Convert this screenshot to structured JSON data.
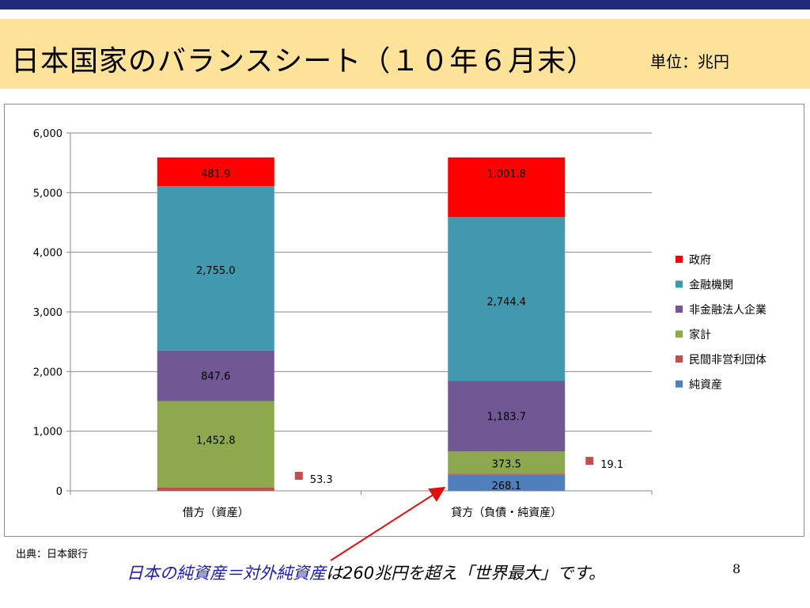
{
  "slide": {
    "title": "日本国家のバランスシート（１０年６月末）",
    "unit": "単位：兆円",
    "source": "出典：日本銀行",
    "caption_highlight": "日本の純資産＝対外純資産",
    "caption_rest": "は260兆円を超え「世界最大」です。",
    "page_number": "8"
  },
  "chart_data": {
    "type": "bar",
    "stacked": true,
    "categories": [
      "借方（資産）",
      "貸方（負債・純資産）"
    ],
    "ylim": [
      0,
      6000
    ],
    "yticks": [
      "0",
      "1,000",
      "2,000",
      "3,000",
      "4,000",
      "5,000",
      "6,000"
    ],
    "grid": true,
    "legend_position": "right",
    "series": [
      {
        "name": "純資産",
        "color": "#4f7fbd",
        "values": [
          0,
          268.1
        ],
        "labels": [
          "",
          "268.1"
        ]
      },
      {
        "name": "民間非営利団体",
        "color": "#c0504d",
        "values": [
          53.3,
          19.1
        ],
        "labels": [
          "53.3",
          "19.1"
        ]
      },
      {
        "name": "家計",
        "color": "#8ea84e",
        "values": [
          1452.8,
          373.5
        ],
        "labels": [
          "1,452.8",
          "373.5"
        ]
      },
      {
        "name": "非金融法人企業",
        "color": "#6f5893",
        "values": [
          847.6,
          1183.7
        ],
        "labels": [
          "847.6",
          "1,183.7"
        ]
      },
      {
        "name": "金融機関",
        "color": "#4298ae",
        "values": [
          2755.0,
          2744.4
        ],
        "labels": [
          "2,755.0",
          "2,744.4"
        ]
      },
      {
        "name": "政府",
        "color": "#fe0000",
        "values": [
          481.9,
          1001.8
        ],
        "labels": [
          "481.9",
          "1,001.8"
        ]
      }
    ],
    "legend_order": [
      "政府",
      "金融機関",
      "非金融法人企業",
      "家計",
      "民間非営利団体",
      "純資産"
    ]
  }
}
